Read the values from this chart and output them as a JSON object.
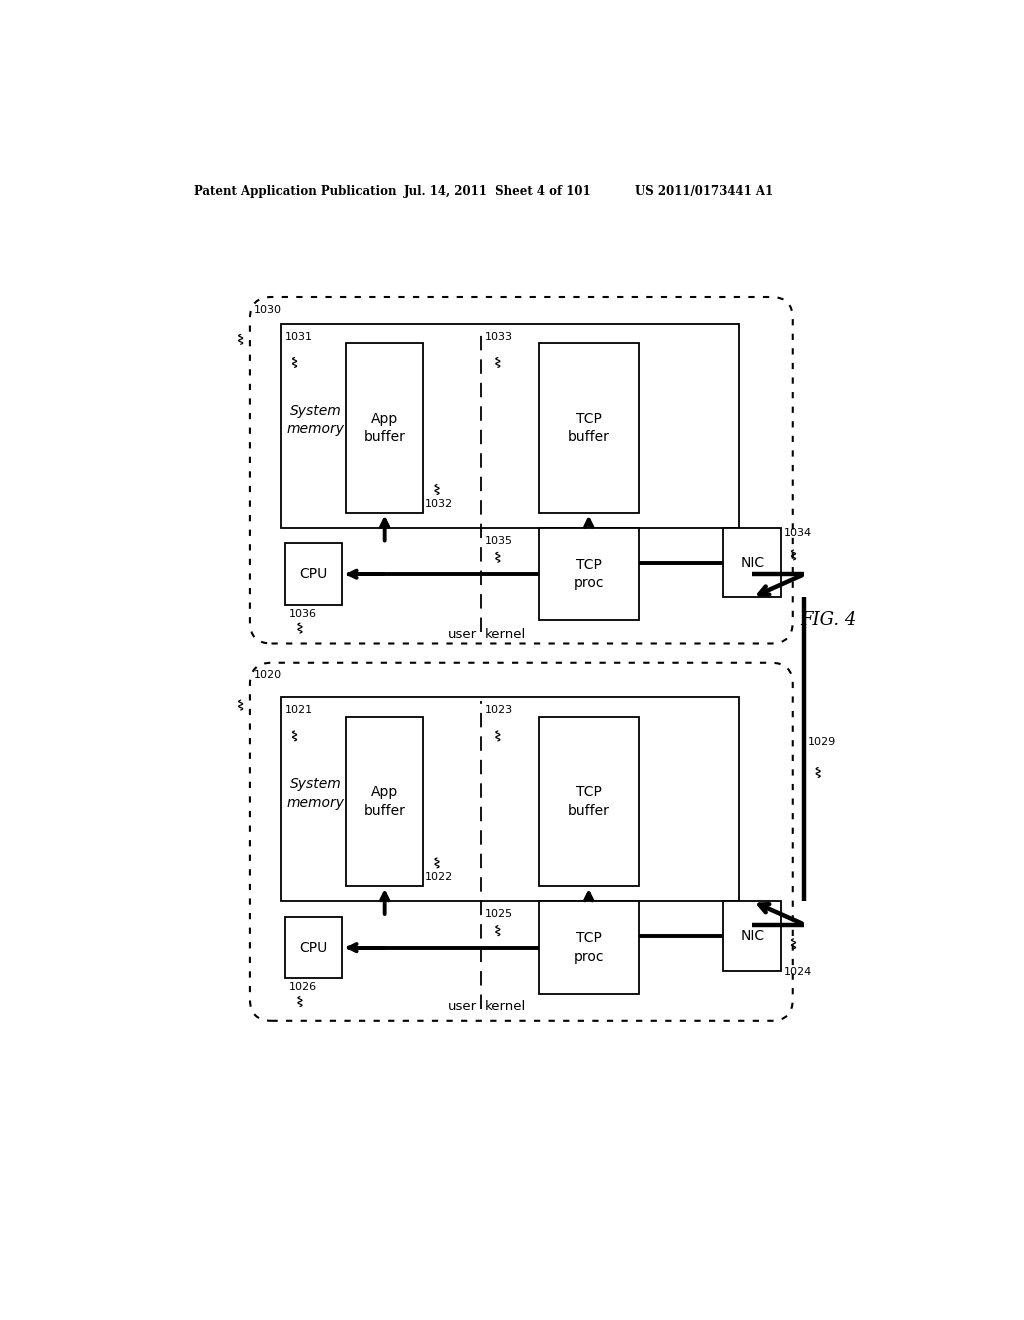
{
  "title_left": "Patent Application Publication",
  "title_mid": "Jul. 14, 2011  Sheet 4 of 101",
  "title_right": "US 2011/0173441 A1",
  "fig_label": "FIG. 4",
  "bg_color": "#ffffff"
}
